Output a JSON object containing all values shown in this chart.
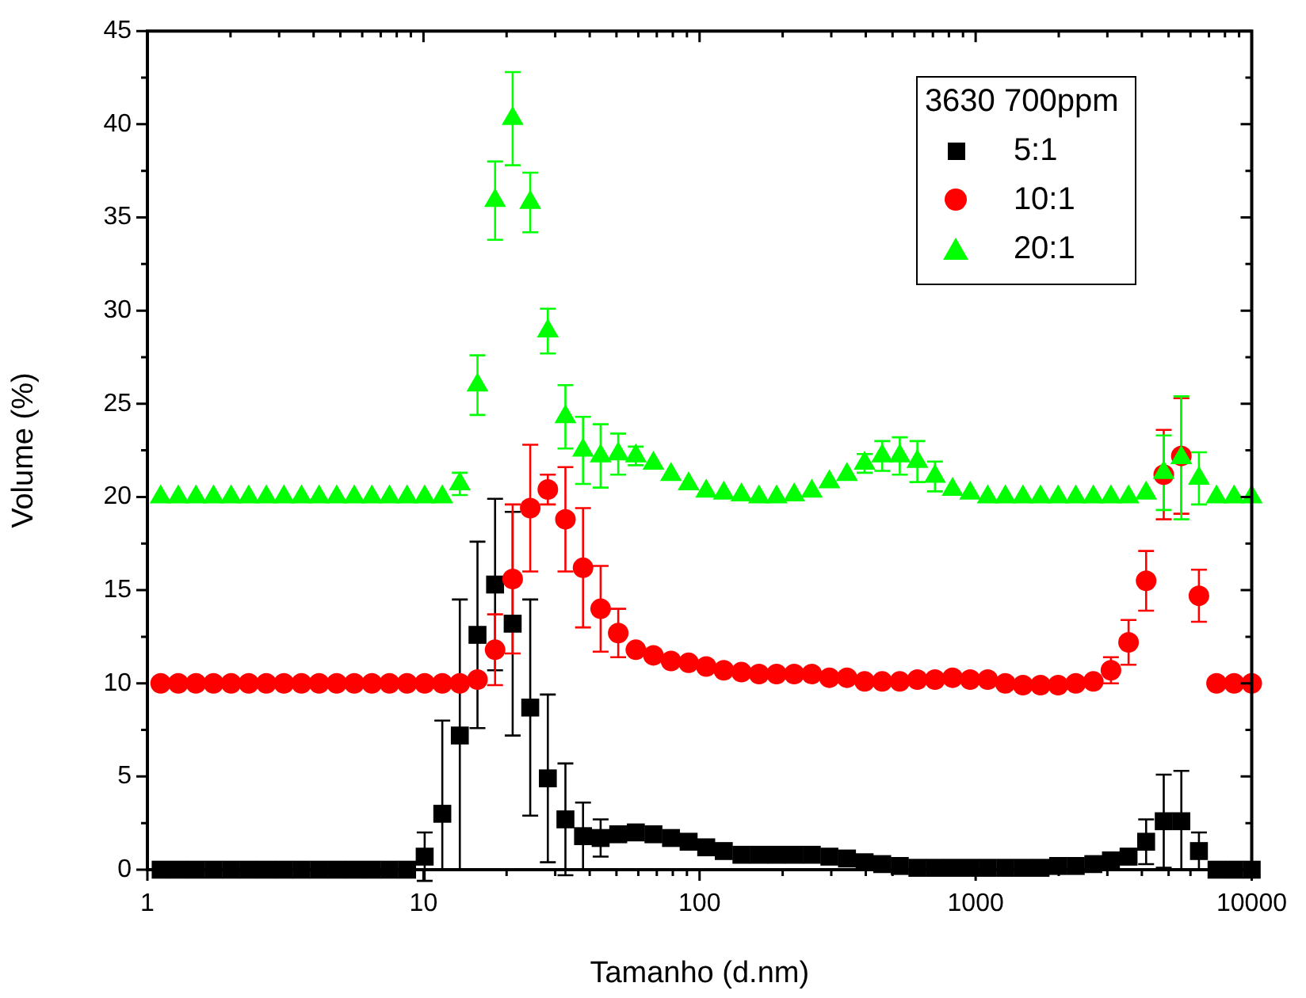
{
  "chart_data": {
    "type": "scatter",
    "xlabel": "Tamanho (d.nm)",
    "ylabel": "Volume (%)",
    "log": "x",
    "legend": "top right",
    "legend_title": "3630 700ppm",
    "xlim": [
      1,
      10000
    ],
    "ylim": [
      0,
      45
    ],
    "xticks": [
      1,
      {
        "value": 2,
        "label": null
      },
      {
        "value": 3,
        "label": null
      },
      {
        "value": 4,
        "label": null
      },
      {
        "value": 5,
        "label": null
      },
      {
        "value": 6,
        "label": null
      },
      {
        "value": 7,
        "label": null
      },
      {
        "value": 8,
        "label": null
      },
      {
        "value": 9,
        "label": null
      },
      10,
      {
        "value": 20,
        "label": null
      },
      {
        "value": 30,
        "label": null
      },
      {
        "value": 40,
        "label": null
      },
      {
        "value": 50,
        "label": null
      },
      {
        "value": 60,
        "label": null
      },
      {
        "value": 70,
        "label": null
      },
      {
        "value": 80,
        "label": null
      },
      {
        "value": 90,
        "label": null
      },
      100,
      {
        "value": 200,
        "label": null
      },
      {
        "value": 300,
        "label": null
      },
      {
        "value": 400,
        "label": null
      },
      {
        "value": 500,
        "label": null
      },
      {
        "value": 600,
        "label": null
      },
      {
        "value": 700,
        "label": null
      },
      {
        "value": 800,
        "label": null
      },
      {
        "value": 900,
        "label": null
      },
      1000,
      {
        "value": 2000,
        "label": null
      },
      {
        "value": 3000,
        "label": null
      },
      {
        "value": 4000,
        "label": null
      },
      {
        "value": 5000,
        "label": null
      },
      {
        "value": 6000,
        "label": null
      },
      {
        "value": 7000,
        "label": null
      },
      {
        "value": 8000,
        "label": null
      },
      {
        "value": 9000,
        "label": null
      },
      10000
    ],
    "yticks": [
      0,
      {
        "value": 2.5,
        "label": null
      },
      5,
      {
        "value": 7.5,
        "label": null
      },
      10,
      {
        "value": 12.5,
        "label": null
      },
      15,
      {
        "value": 17.5,
        "label": null
      },
      20,
      {
        "value": 22.5,
        "label": null
      },
      25,
      {
        "value": 27.5,
        "label": null
      },
      30,
      {
        "value": 32.5,
        "label": null
      },
      35,
      {
        "value": 37.5,
        "label": null
      },
      40,
      {
        "value": 42.5,
        "label": null
      },
      45
    ],
    "x": [
      1.117,
      1.294,
      1.499,
      1.736,
      2.01,
      2.328,
      2.696,
      3.122,
      3.615,
      4.187,
      4.849,
      5.615,
      6.503,
      7.531,
      8.721,
      10.1,
      11.7,
      13.54,
      15.69,
      18.17,
      21.04,
      24.36,
      28.21,
      32.67,
      37.84,
      43.82,
      50.75,
      58.77,
      68.06,
      78.82,
      91.28,
      105.7,
      122.4,
      141.8,
      164.2,
      190.1,
      220.2,
      255,
      295.3,
      342,
      396.1,
      458.7,
      531.2,
      615.1,
      712.4,
      825,
      955.4,
      1106,
      1281,
      1484,
      1718,
      1990,
      2305,
      2669,
      3091,
      3580,
      4145,
      4801,
      5560,
      6439,
      7456,
      8635,
      10000
    ],
    "series": [
      {
        "name": "5:1",
        "color": "#000000",
        "marker": "square",
        "values": [
          0,
          0,
          0,
          0,
          0,
          0,
          0,
          0,
          0,
          0,
          0,
          0,
          0,
          0,
          0,
          0.7,
          3.0,
          7.2,
          12.6,
          15.3,
          13.2,
          8.7,
          4.9,
          2.7,
          1.8,
          1.7,
          1.9,
          2.0,
          1.9,
          1.7,
          1.5,
          1.2,
          1.0,
          0.8,
          0.8,
          0.8,
          0.8,
          0.8,
          0.7,
          0.6,
          0.4,
          0.3,
          0.2,
          0.1,
          0.1,
          0.1,
          0.1,
          0.1,
          0.1,
          0.1,
          0.1,
          0.2,
          0.2,
          0.3,
          0.5,
          0.7,
          1.5,
          2.6,
          2.6,
          1.0,
          0,
          0,
          0
        ],
        "errors": [
          null,
          null,
          null,
          null,
          null,
          null,
          null,
          null,
          null,
          null,
          null,
          null,
          null,
          null,
          null,
          1.3,
          [
            0,
            8.0
          ],
          [
            0,
            14.5
          ],
          5.0,
          4.6,
          6.0,
          5.8,
          4.5,
          3.0,
          1.8,
          1.0,
          null,
          null,
          null,
          null,
          null,
          null,
          null,
          null,
          null,
          null,
          null,
          null,
          null,
          null,
          null,
          null,
          null,
          null,
          null,
          null,
          null,
          null,
          null,
          null,
          null,
          null,
          null,
          null,
          null,
          0.4,
          1.2,
          2.5,
          [
            0,
            5.3
          ],
          1.0,
          null,
          null,
          null
        ]
      },
      {
        "name": "10:1",
        "color": "#ff0000",
        "marker": "circle",
        "values": [
          10,
          10,
          10,
          10,
          10,
          10,
          10,
          10,
          10,
          10,
          10,
          10,
          10,
          10,
          10,
          10,
          10,
          10,
          10.2,
          11.8,
          15.6,
          19.4,
          20.4,
          18.8,
          16.2,
          14.0,
          12.7,
          11.8,
          11.5,
          11.2,
          11.1,
          10.9,
          10.7,
          10.6,
          10.5,
          10.5,
          10.5,
          10.5,
          10.3,
          10.3,
          10.1,
          10.1,
          10.1,
          10.2,
          10.2,
          10.3,
          10.2,
          10.2,
          10.0,
          9.9,
          9.9,
          9.9,
          10.0,
          10.1,
          10.7,
          12.2,
          15.5,
          21.2,
          22.2,
          14.7,
          10,
          10,
          10
        ],
        "errors": [
          null,
          null,
          null,
          null,
          null,
          null,
          null,
          null,
          null,
          null,
          null,
          null,
          null,
          null,
          null,
          null,
          null,
          null,
          null,
          1.9,
          4.0,
          3.4,
          0.8,
          2.8,
          3.2,
          2.3,
          1.3,
          null,
          null,
          null,
          null,
          null,
          null,
          null,
          null,
          null,
          null,
          null,
          null,
          null,
          null,
          null,
          null,
          null,
          null,
          null,
          null,
          null,
          null,
          null,
          null,
          null,
          null,
          null,
          0.7,
          1.2,
          1.6,
          2.4,
          3.1,
          1.4,
          null,
          null,
          null
        ]
      },
      {
        "name": "20:1",
        "color": "#00ff00",
        "marker": "triangle",
        "values": [
          20,
          20,
          20,
          20,
          20,
          20,
          20,
          20,
          20,
          20,
          20,
          20,
          20,
          20,
          20,
          20,
          20,
          20.7,
          26.0,
          35.9,
          40.3,
          35.8,
          28.9,
          24.3,
          22.5,
          22.2,
          22.3,
          22.2,
          21.8,
          21.2,
          20.7,
          20.3,
          20.2,
          20.1,
          20.0,
          20.0,
          20.1,
          20.3,
          20.8,
          21.2,
          21.8,
          22.2,
          22.2,
          21.9,
          21.1,
          20.4,
          20.2,
          20.0,
          20,
          20,
          20,
          20,
          20,
          20,
          20,
          20,
          20.2,
          21.3,
          22.1,
          21.0,
          20,
          20,
          20
        ],
        "errors": [
          null,
          null,
          null,
          null,
          null,
          null,
          null,
          null,
          null,
          null,
          null,
          null,
          null,
          null,
          null,
          null,
          null,
          0.6,
          1.6,
          2.1,
          2.5,
          1.6,
          1.2,
          1.7,
          1.8,
          1.7,
          1.1,
          0.5,
          null,
          null,
          null,
          null,
          null,
          null,
          null,
          null,
          null,
          null,
          null,
          null,
          0.5,
          0.8,
          1.0,
          1.1,
          0.8,
          null,
          null,
          null,
          null,
          null,
          null,
          null,
          null,
          null,
          null,
          null,
          null,
          2.0,
          3.3,
          1.4,
          null,
          null,
          null
        ]
      }
    ]
  }
}
